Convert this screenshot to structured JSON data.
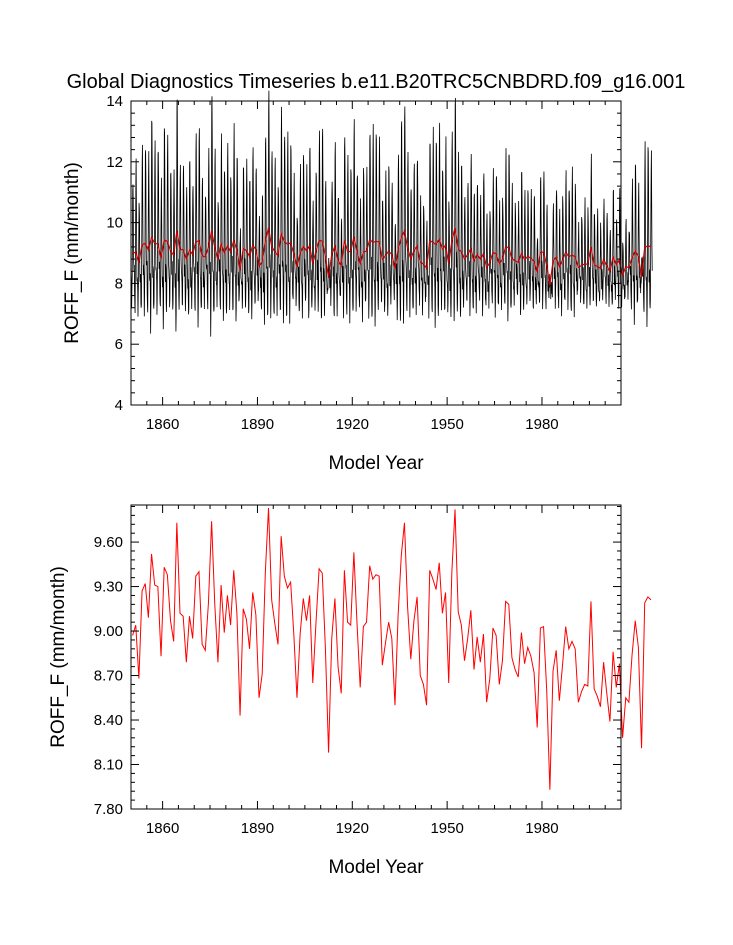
{
  "chart_data": [
    {
      "type": "line",
      "title": "Global Diagnostics Timeseries b.e11.B20TRC5CNBDRD.f09_g16.001",
      "xlabel": "Model Year",
      "ylabel": "ROFF_F (mm/month)",
      "xlim": [
        1850,
        2005
      ],
      "ylim": [
        4,
        14
      ],
      "xticks": [
        1860,
        1890,
        1920,
        1950,
        1980
      ],
      "xtick_labels": [
        "1860",
        "1890",
        "1920",
        "1950",
        "1980"
      ],
      "yticks": [
        4,
        6,
        8,
        10,
        12,
        14
      ],
      "ytick_labels": [
        "4",
        "6",
        "8",
        "10",
        "12",
        "14"
      ],
      "legend": "none",
      "grid": false,
      "series": [
        {
          "color": "#000000",
          "resolution": "monthly",
          "annual_cycle_mm_month": [
            8.6,
            8.0,
            7.4,
            7.7,
            8.7,
            10.1,
            11.6,
            11.9,
            10.8,
            9.3,
            8.5,
            8.6
          ],
          "approx_range": [
            5.8,
            13.7
          ]
        },
        {
          "color": "#cc0000",
          "resolution": "annual mean",
          "approx_range": [
            7.93,
            9.83
          ]
        }
      ]
    },
    {
      "type": "line",
      "title": "",
      "xlabel": "Model Year",
      "ylabel": "ROFF_F (mm/month)",
      "xlim": [
        1850,
        2005
      ],
      "ylim": [
        7.8,
        9.85
      ],
      "xticks": [
        1860,
        1890,
        1920,
        1950,
        1980
      ],
      "xtick_labels": [
        "1860",
        "1890",
        "1920",
        "1950",
        "1980"
      ],
      "yticks": [
        7.8,
        8.1,
        8.4,
        8.7,
        9.0,
        9.3,
        9.6
      ],
      "ytick_labels": [
        "7.80",
        "8.10",
        "8.40",
        "8.70",
        "9.00",
        "9.30",
        "9.60"
      ],
      "legend": "none",
      "grid": false,
      "series": [
        {
          "color": "#ff0000",
          "x_start": 1850,
          "x_step": 1,
          "values": [
            8.97,
            9.04,
            8.68,
            9.27,
            9.32,
            9.09,
            9.52,
            9.31,
            9.3,
            8.83,
            9.43,
            9.38,
            9.07,
            8.93,
            9.73,
            9.12,
            9.1,
            8.79,
            9.1,
            8.95,
            9.37,
            9.4,
            8.91,
            8.87,
            9.19,
            9.74,
            9.18,
            8.79,
            9.31,
            8.99,
            9.24,
            9.04,
            9.41,
            9.12,
            8.43,
            9.15,
            9.08,
            8.88,
            9.26,
            9.11,
            8.55,
            8.71,
            9.4,
            9.83,
            9.21,
            9.05,
            8.91,
            9.64,
            9.37,
            9.29,
            9.33,
            8.98,
            8.55,
            8.98,
            9.22,
            9.07,
            9.24,
            8.65,
            9.05,
            9.42,
            9.39,
            8.88,
            8.18,
            8.95,
            9.22,
            8.76,
            8.58,
            9.41,
            9.06,
            9.04,
            9.53,
            9.05,
            8.62,
            9.03,
            9.06,
            9.44,
            9.35,
            9.38,
            9.37,
            8.77,
            8.92,
            9.06,
            8.95,
            8.5,
            9.11,
            9.51,
            9.73,
            9.16,
            8.81,
            9.07,
            9.23,
            8.7,
            8.64,
            8.5,
            9.41,
            9.35,
            9.28,
            9.46,
            9.12,
            9.26,
            8.65,
            9.4,
            9.82,
            9.13,
            9.04,
            8.8,
            8.95,
            9.14,
            8.74,
            8.96,
            8.79,
            8.98,
            8.52,
            8.68,
            9.02,
            8.97,
            8.64,
            8.8,
            9.2,
            9.18,
            8.82,
            8.74,
            8.69,
            8.99,
            8.78,
            8.89,
            8.83,
            8.72,
            8.35,
            9.02,
            9.03,
            8.6,
            7.93,
            8.73,
            8.87,
            8.53,
            8.77,
            9.03,
            8.88,
            8.93,
            8.88,
            8.52,
            8.59,
            8.64,
            8.63,
            9.2,
            8.61,
            8.56,
            8.49,
            8.79,
            8.58,
            8.39,
            8.86,
            8.62,
            8.78,
            8.28,
            8.55,
            8.52,
            8.84,
            9.07,
            8.89,
            8.21,
            9.19,
            9.23,
            9.21
          ]
        }
      ]
    }
  ]
}
